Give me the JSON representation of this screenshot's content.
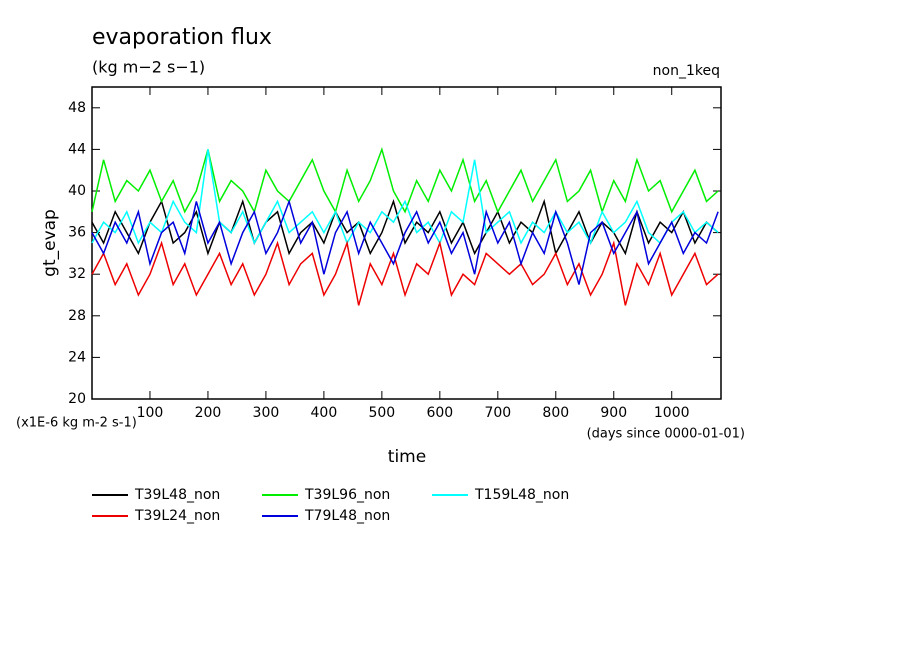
{
  "chart_data": {
    "type": "line",
    "title": "evaporation flux",
    "subtitle": "(kg m−2 s−1)",
    "annotation": "non_1keq",
    "y_label": "gt_evap",
    "x_label": "time",
    "y_unit_note": "(x1E-6 kg m-2 s-1)",
    "x_unit_note": "(days since 0000-01-01)",
    "xlim": [
      0,
      1085
    ],
    "ylim": [
      20,
      50
    ],
    "xticks": [
      100,
      200,
      300,
      400,
      500,
      600,
      700,
      800,
      900,
      1000
    ],
    "yticks": [
      20,
      24,
      28,
      32,
      36,
      40,
      44,
      48
    ],
    "x": [
      0,
      20,
      40,
      60,
      80,
      100,
      120,
      140,
      160,
      180,
      200,
      220,
      240,
      260,
      280,
      300,
      320,
      340,
      360,
      380,
      400,
      420,
      440,
      460,
      480,
      500,
      520,
      540,
      560,
      580,
      600,
      620,
      640,
      660,
      680,
      700,
      720,
      740,
      760,
      780,
      800,
      820,
      840,
      860,
      880,
      900,
      920,
      940,
      960,
      980,
      1000,
      1020,
      1040,
      1060,
      1080
    ],
    "series": [
      {
        "name": "T39L48_non",
        "color": "#000000",
        "values": [
          37,
          35,
          38,
          36,
          34,
          37,
          39,
          35,
          36,
          38,
          34,
          37,
          36,
          39,
          35,
          37,
          38,
          34,
          36,
          37,
          35,
          38,
          36,
          37,
          34,
          36,
          39,
          35,
          37,
          36,
          38,
          35,
          37,
          34,
          36,
          38,
          35,
          37,
          36,
          39,
          34,
          36,
          38,
          35,
          37,
          36,
          34,
          38,
          35,
          37,
          36,
          38,
          35,
          37,
          36
        ]
      },
      {
        "name": "T39L96_non",
        "color": "#00ee00",
        "values": [
          38,
          43,
          39,
          41,
          40,
          42,
          39,
          41,
          38,
          40,
          44,
          39,
          41,
          40,
          38,
          42,
          40,
          39,
          41,
          43,
          40,
          38,
          42,
          39,
          41,
          44,
          40,
          38,
          41,
          39,
          42,
          40,
          43,
          39,
          41,
          38,
          40,
          42,
          39,
          41,
          43,
          39,
          40,
          42,
          38,
          41,
          39,
          43,
          40,
          41,
          38,
          40,
          42,
          39,
          40
        ]
      },
      {
        "name": "T159L48_non",
        "color": "#00ffff",
        "values": [
          35,
          37,
          36,
          38,
          35,
          37,
          36,
          39,
          37,
          36,
          44,
          37,
          36,
          38,
          35,
          37,
          39,
          36,
          37,
          38,
          36,
          38,
          35,
          37,
          36,
          38,
          37,
          39,
          36,
          37,
          35,
          38,
          37,
          43,
          36,
          37,
          38,
          35,
          37,
          36,
          38,
          36,
          37,
          35,
          38,
          36,
          37,
          39,
          36,
          35,
          37,
          38,
          36,
          37,
          36
        ]
      },
      {
        "name": "T39L24_non",
        "color": "#ee0000",
        "values": [
          32,
          34,
          31,
          33,
          30,
          32,
          35,
          31,
          33,
          30,
          32,
          34,
          31,
          33,
          30,
          32,
          35,
          31,
          33,
          34,
          30,
          32,
          35,
          29,
          33,
          31,
          34,
          30,
          33,
          32,
          35,
          30,
          32,
          31,
          34,
          33,
          32,
          33,
          31,
          32,
          34,
          31,
          33,
          30,
          32,
          35,
          29,
          33,
          31,
          34,
          30,
          32,
          34,
          31,
          32
        ]
      },
      {
        "name": "T79L48_non",
        "color": "#0000dd",
        "values": [
          36,
          34,
          37,
          35,
          38,
          33,
          36,
          37,
          34,
          39,
          35,
          37,
          33,
          36,
          38,
          34,
          36,
          39,
          35,
          37,
          32,
          36,
          38,
          34,
          37,
          35,
          33,
          36,
          38,
          35,
          37,
          34,
          36,
          32,
          38,
          35,
          37,
          33,
          36,
          34,
          38,
          35,
          31,
          36,
          37,
          34,
          36,
          38,
          33,
          35,
          37,
          34,
          36,
          35,
          38
        ]
      }
    ]
  }
}
